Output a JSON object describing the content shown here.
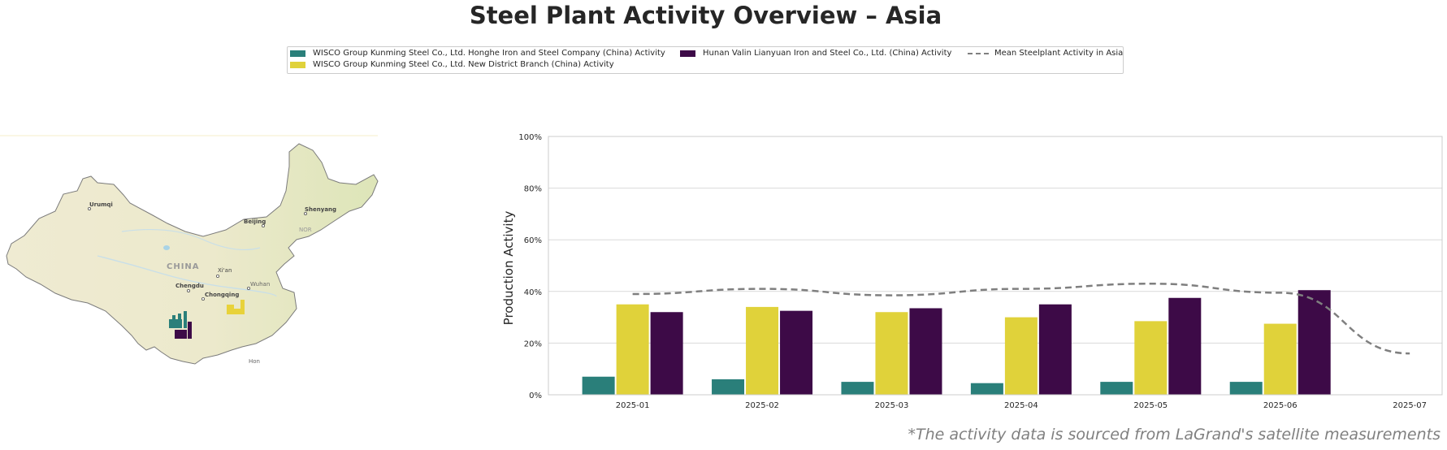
{
  "title": "Steel Plant Activity Overview – Asia",
  "legend": {
    "items": [
      {
        "label": "WISCO Group Kunming Steel Co., Ltd. Honghe Iron and Steel Company (China) Activity",
        "color": "#2a7f7a"
      },
      {
        "label": "WISCO Group Kunming Steel Co., Ltd. New District Branch (China) Activity",
        "color": "#e0d23a"
      },
      {
        "label": "Hunan Valin Lianyuan Iron and Steel Co., Ltd. (China) Activity",
        "color": "#3d0a47"
      },
      {
        "label": "Mean Steelplant Activity in Asia",
        "color": "#7f7f7f",
        "style": "dashed"
      }
    ]
  },
  "map": {
    "country_label": "CHINA",
    "cities": [
      "Urumqi",
      "Beijing",
      "Shenyang",
      "Xi'an",
      "Chengdu",
      "Chongqing",
      "Wuhan",
      "Hon",
      "NOR"
    ],
    "plant_icon_colors": [
      "#2a7f7a",
      "#3d0a47",
      "#e8d23a"
    ]
  },
  "chart_data": {
    "type": "bar",
    "categories": [
      "2025-01",
      "2025-02",
      "2025-03",
      "2025-04",
      "2025-05",
      "2025-06",
      "2025-07"
    ],
    "series": [
      {
        "name": "WISCO Group Kunming Steel Co., Ltd. Honghe Iron and Steel Company (China) Activity",
        "color": "#2a7f7a",
        "values": [
          7,
          6,
          5,
          4.5,
          5,
          5,
          null
        ]
      },
      {
        "name": "WISCO Group Kunming Steel Co., Ltd. New District Branch (China) Activity",
        "color": "#e0d23a",
        "values": [
          35,
          34,
          32,
          30,
          28.5,
          27.5,
          null
        ]
      },
      {
        "name": "Hunan Valin Lianyuan Iron and Steel Co., Ltd. (China) Activity",
        "color": "#3d0a47",
        "values": [
          32,
          32.5,
          33.5,
          35,
          37.5,
          40.5,
          null
        ]
      }
    ],
    "line_series": {
      "name": "Mean Steelplant Activity in Asia",
      "color": "#7f7f7f",
      "style": "dashed",
      "values": [
        39,
        41,
        38.5,
        41,
        43,
        39.5,
        16
      ]
    },
    "ylabel": "Production Activity",
    "xlabel": "",
    "ylim": [
      0,
      100
    ],
    "yticks": [
      "0%",
      "20%",
      "40%",
      "60%",
      "80%",
      "100%"
    ],
    "grid": true
  },
  "footnote": "*The activity data is sourced from LaGrand's satellite measurements"
}
